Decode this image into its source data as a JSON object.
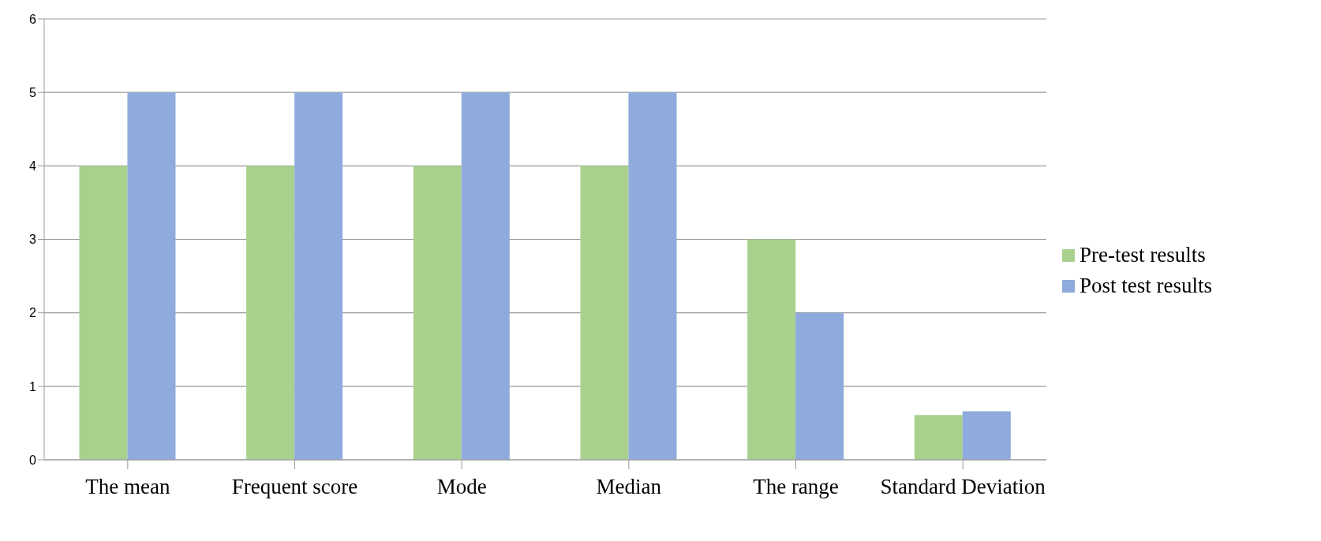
{
  "chart_data": {
    "type": "bar",
    "categories": [
      "The mean",
      "Frequent score",
      "Mode",
      "Median",
      "The range",
      "Standard Deviation"
    ],
    "series": [
      {
        "name": "Pre-test results",
        "color": "#a9d18e",
        "values": [
          4,
          4,
          4,
          4,
          3,
          0.61
        ]
      },
      {
        "name": "Post test results",
        "color": "#8faadc",
        "values": [
          5,
          5,
          5,
          5,
          2,
          0.66
        ]
      }
    ],
    "ylim": [
      0,
      6
    ],
    "yticks": [
      0,
      1,
      2,
      3,
      4,
      5,
      6
    ],
    "grid": "y",
    "legend": "right"
  }
}
